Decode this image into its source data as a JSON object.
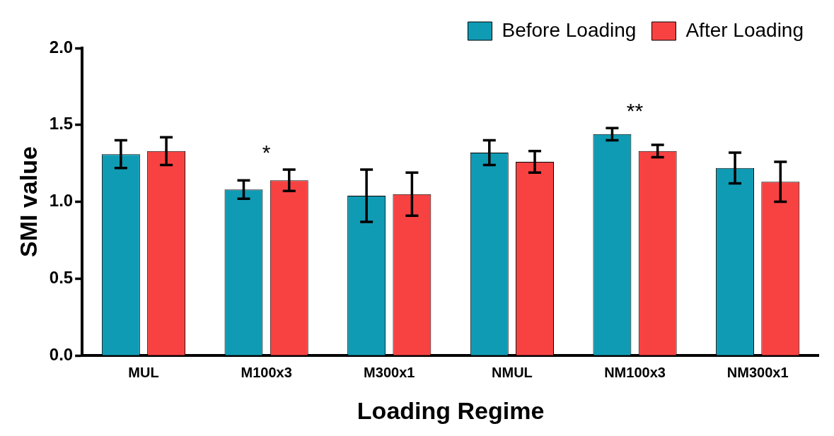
{
  "chart_data": {
    "type": "bar",
    "xlabel": "Loading Regime",
    "ylabel": "SMI value",
    "categories": [
      "MUL",
      "M100x3",
      "M300x1",
      "NMUL",
      "NM100x3",
      "NM300x1"
    ],
    "series": [
      {
        "name": "Before Loading",
        "color": "#109bb4",
        "values": [
          1.31,
          1.08,
          1.04,
          1.32,
          1.44,
          1.22
        ],
        "errors": [
          0.09,
          0.06,
          0.17,
          0.08,
          0.04,
          0.1
        ]
      },
      {
        "name": "After Loading",
        "color": "#f84242",
        "values": [
          1.33,
          1.14,
          1.05,
          1.26,
          1.33,
          1.13
        ],
        "errors": [
          0.09,
          0.07,
          0.14,
          0.07,
          0.04,
          0.13
        ]
      }
    ],
    "ylim": [
      0,
      2
    ],
    "yticks": [
      {
        "value": 0,
        "label": "0.0"
      },
      {
        "value": 0.5,
        "label": "0.5"
      },
      {
        "value": 1,
        "label": "1.0"
      },
      {
        "value": 1.5,
        "label": "1.5"
      },
      {
        "value": 2,
        "label": "2.0"
      }
    ],
    "annotations": [
      "*",
      "**"
    ],
    "legend": "top right",
    "grid": false
  }
}
